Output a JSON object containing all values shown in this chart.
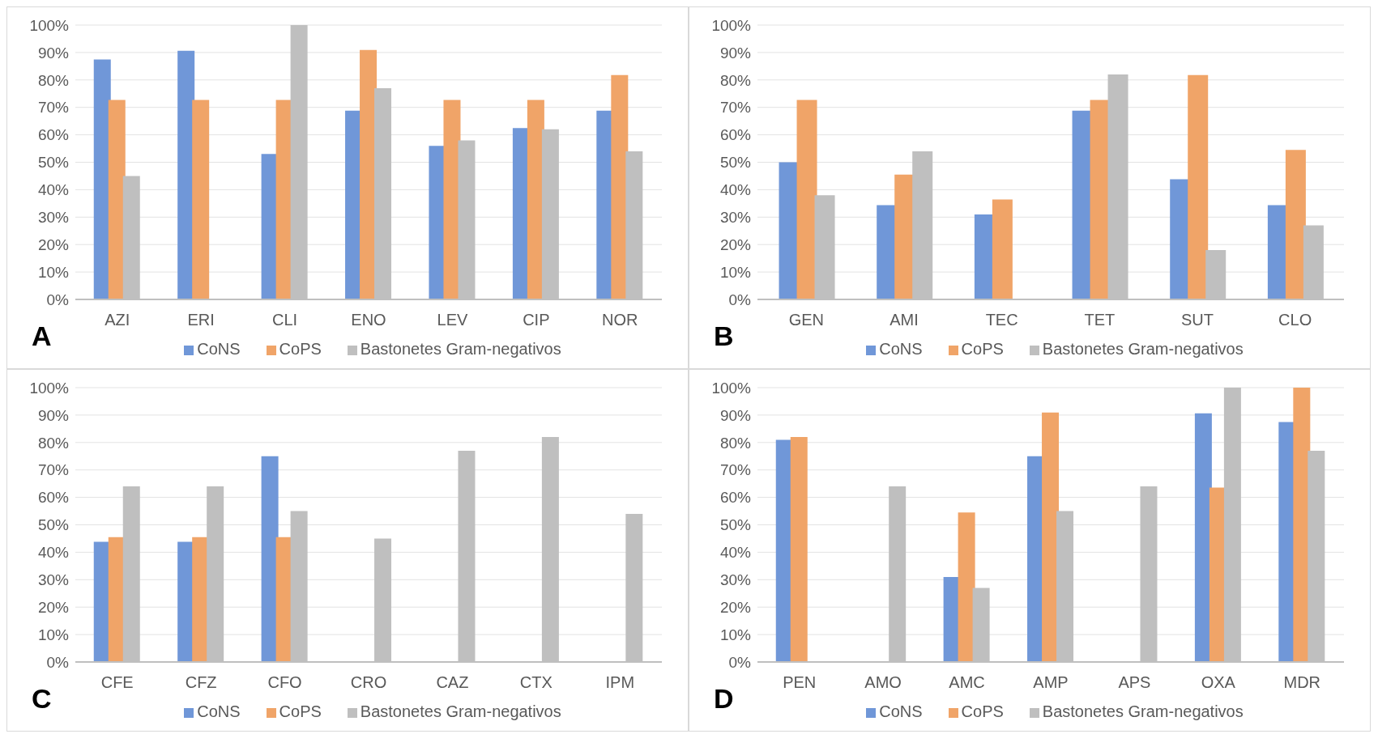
{
  "chart_data": [
    {
      "type": "bar",
      "categories": [
        "AZI",
        "ERI",
        "CLI",
        "ENO",
        "LEV",
        "CIP",
        "NOR"
      ],
      "series": [
        {
          "name": "CoNS",
          "color": "#7097d8",
          "values": [
            87.5,
            90.6,
            53,
            68.8,
            56,
            62.5,
            68.8
          ]
        },
        {
          "name": "CoPS",
          "color": "#f0a468",
          "values": [
            72.7,
            72.7,
            72.7,
            90.9,
            72.7,
            72.7,
            81.8
          ]
        },
        {
          "name": "Bastonetes Gram-negativos",
          "color": "#bfbfbf",
          "values": [
            45,
            0,
            100,
            77,
            58,
            62,
            54
          ]
        }
      ],
      "ylim": [
        0,
        100
      ],
      "yticks": [
        {
          "value": 0,
          "label": "0%"
        },
        {
          "value": 10,
          "label": "10%"
        },
        {
          "value": 20,
          "label": "20%"
        },
        {
          "value": 30,
          "label": "30%"
        },
        {
          "value": 40,
          "label": "40%"
        },
        {
          "value": 50,
          "label": "50%"
        },
        {
          "value": 60,
          "label": "60%"
        },
        {
          "value": 70,
          "label": "70%"
        },
        {
          "value": 80,
          "label": "80%"
        },
        {
          "value": 90,
          "label": "90%"
        },
        {
          "value": 100,
          "label": "100%"
        }
      ],
      "grid": "y",
      "legend": "bottom",
      "annotations": [
        "A"
      ]
    },
    {
      "type": "bar",
      "categories": [
        "GEN",
        "AMI",
        "TEC",
        "TET",
        "SUT",
        "CLO"
      ],
      "series": [
        {
          "name": "CoNS",
          "color": "#7097d8",
          "values": [
            50,
            34.4,
            31,
            68.8,
            43.8,
            34.4
          ]
        },
        {
          "name": "CoPS",
          "color": "#f0a468",
          "values": [
            72.7,
            45.5,
            36.4,
            72.7,
            81.8,
            54.5
          ]
        },
        {
          "name": "Bastonetes Gram-negativos",
          "color": "#bfbfbf",
          "values": [
            38,
            54,
            0,
            82,
            18,
            27
          ]
        }
      ],
      "ylim": [
        0,
        100
      ],
      "yticks": [
        {
          "value": 0,
          "label": "0%"
        },
        {
          "value": 10,
          "label": "10%"
        },
        {
          "value": 20,
          "label": "20%"
        },
        {
          "value": 30,
          "label": "30%"
        },
        {
          "value": 40,
          "label": "40%"
        },
        {
          "value": 50,
          "label": "50%"
        },
        {
          "value": 60,
          "label": "60%"
        },
        {
          "value": 70,
          "label": "70%"
        },
        {
          "value": 80,
          "label": "80%"
        },
        {
          "value": 90,
          "label": "90%"
        },
        {
          "value": 100,
          "label": "100%"
        }
      ],
      "grid": "y",
      "legend": "bottom",
      "annotations": [
        "B"
      ]
    },
    {
      "type": "bar",
      "categories": [
        "CFE",
        "CFZ",
        "CFO",
        "CRO",
        "CAZ",
        "CTX",
        "IPM"
      ],
      "series": [
        {
          "name": "CoNS",
          "color": "#7097d8",
          "values": [
            43.8,
            43.8,
            75,
            0,
            0,
            0,
            0
          ]
        },
        {
          "name": "CoPS",
          "color": "#f0a468",
          "values": [
            45.5,
            45.5,
            45.5,
            0,
            0,
            0,
            0
          ]
        },
        {
          "name": "Bastonetes Gram-negativos",
          "color": "#bfbfbf",
          "values": [
            64,
            64,
            55,
            45,
            77,
            82,
            54
          ]
        }
      ],
      "ylim": [
        0,
        100
      ],
      "yticks": [
        {
          "value": 0,
          "label": "0%"
        },
        {
          "value": 10,
          "label": "10%"
        },
        {
          "value": 20,
          "label": "20%"
        },
        {
          "value": 30,
          "label": "30%"
        },
        {
          "value": 40,
          "label": "40%"
        },
        {
          "value": 50,
          "label": "50%"
        },
        {
          "value": 60,
          "label": "60%"
        },
        {
          "value": 70,
          "label": "70%"
        },
        {
          "value": 80,
          "label": "80%"
        },
        {
          "value": 90,
          "label": "90%"
        },
        {
          "value": 100,
          "label": "100%"
        }
      ],
      "grid": "y",
      "legend": "bottom",
      "annotations": [
        "C"
      ]
    },
    {
      "type": "bar",
      "categories": [
        "PEN",
        "AMO",
        "AMC",
        "AMP",
        "APS",
        "OXA",
        "MDR"
      ],
      "series": [
        {
          "name": "CoNS",
          "color": "#7097d8",
          "values": [
            81,
            0,
            31,
            75,
            0,
            90.6,
            87.5
          ]
        },
        {
          "name": "CoPS",
          "color": "#f0a468",
          "values": [
            82,
            0,
            54.5,
            90.9,
            0,
            63.6,
            100
          ]
        },
        {
          "name": "Bastonetes Gram-negativos",
          "color": "#bfbfbf",
          "values": [
            0,
            64,
            27,
            55,
            64,
            100,
            77
          ]
        }
      ],
      "ylim": [
        0,
        100
      ],
      "yticks": [
        {
          "value": 0,
          "label": "0%"
        },
        {
          "value": 10,
          "label": "10%"
        },
        {
          "value": 20,
          "label": "20%"
        },
        {
          "value": 30,
          "label": "30%"
        },
        {
          "value": 40,
          "label": "40%"
        },
        {
          "value": 50,
          "label": "50%"
        },
        {
          "value": 60,
          "label": "60%"
        },
        {
          "value": 70,
          "label": "70%"
        },
        {
          "value": 80,
          "label": "80%"
        },
        {
          "value": 90,
          "label": "90%"
        },
        {
          "value": 100,
          "label": "100%"
        }
      ],
      "grid": "y",
      "legend": "bottom",
      "annotations": [
        "D"
      ]
    }
  ]
}
